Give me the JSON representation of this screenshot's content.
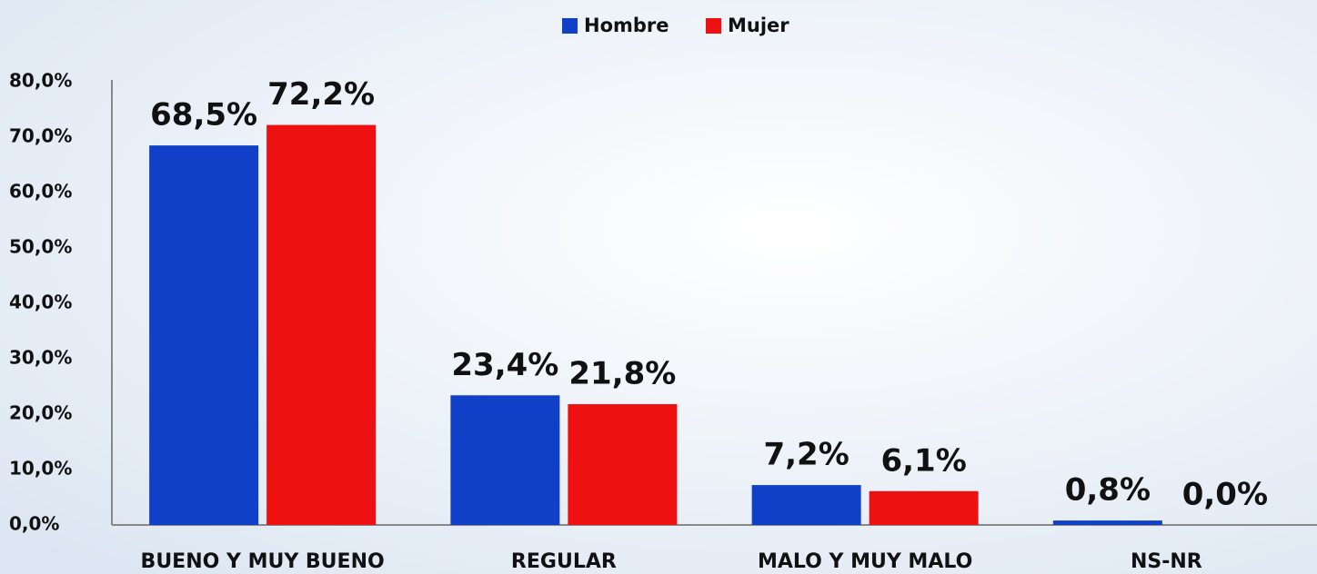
{
  "chart_data": {
    "type": "bar",
    "categories": [
      "BUENO Y MUY BUENO",
      "REGULAR",
      "MALO Y MUY MALO",
      "NS-NR"
    ],
    "series": [
      {
        "name": "Hombre",
        "color": "#1040c8",
        "values": [
          68.5,
          23.4,
          7.2,
          0.8
        ],
        "value_labels": [
          "68,5%",
          "23,4%",
          "7,2%",
          "0,8%"
        ]
      },
      {
        "name": "Mujer",
        "color": "#ee1111",
        "values": [
          72.2,
          21.8,
          6.1,
          0.0
        ],
        "value_labels": [
          "72,2%",
          "21,8%",
          "6,1%",
          "0,0%"
        ]
      }
    ],
    "ylim": [
      0,
      80
    ],
    "yticks": [
      {
        "value": 0,
        "label": "0,0%"
      },
      {
        "value": 10,
        "label": "10,0%"
      },
      {
        "value": 20,
        "label": "20,0%"
      },
      {
        "value": 30,
        "label": "30,0%"
      },
      {
        "value": 40,
        "label": "40,0%"
      },
      {
        "value": 50,
        "label": "50,0%"
      },
      {
        "value": 60,
        "label": "60,0%"
      },
      {
        "value": 70,
        "label": "70,0%"
      },
      {
        "value": 80,
        "label": "80,0%"
      }
    ],
    "legend": "top"
  }
}
